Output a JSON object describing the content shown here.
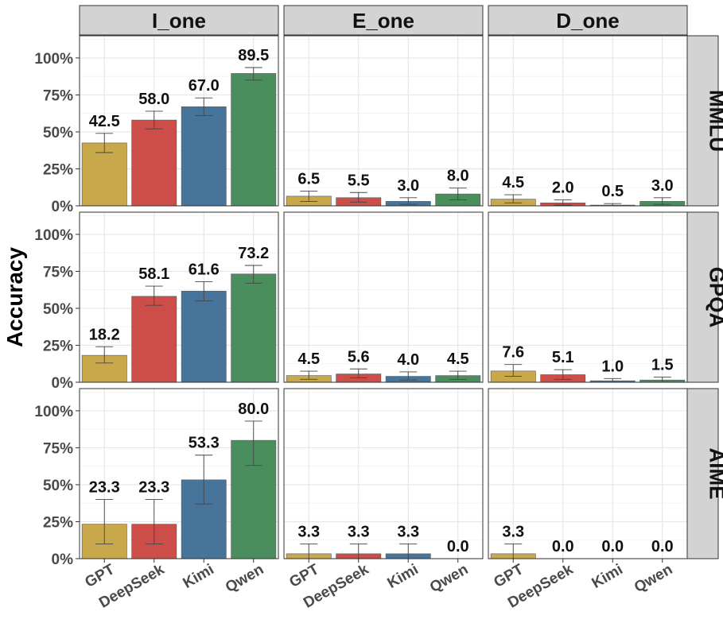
{
  "chart_data": {
    "type": "bar",
    "layout": "facet-grid",
    "ylabel": "Accuracy",
    "xlabel": "",
    "ylim": [
      0,
      100
    ],
    "y_ticks": [
      "0%",
      "25%",
      "50%",
      "75%",
      "100%"
    ],
    "y_tick_values": [
      0,
      25,
      50,
      75,
      100
    ],
    "grid": true,
    "legend": "none",
    "columns": [
      "I_one",
      "E_one",
      "D_one"
    ],
    "rows": [
      "MMLU",
      "GPQA",
      "AIME"
    ],
    "categories": [
      "GPT",
      "DeepSeek",
      "Kimi",
      "Qwen"
    ],
    "colors": {
      "GPT": "#C9A84C",
      "DeepSeek": "#CD4D48",
      "Kimi": "#46749A",
      "Qwen": "#4B8E5E",
      "strip": "#D3D3D3",
      "grid": "#E6E6E6"
    },
    "panels": [
      {
        "row": "MMLU",
        "col": "I_one",
        "values": [
          42.5,
          58.0,
          67.0,
          89.5
        ],
        "labels": [
          "42.5",
          "58.0",
          "67.0",
          "89.5"
        ],
        "err": [
          [
            36,
            49
          ],
          [
            52,
            64
          ],
          [
            61,
            73
          ],
          [
            85,
            93.5
          ]
        ]
      },
      {
        "row": "MMLU",
        "col": "E_one",
        "values": [
          6.5,
          5.5,
          3.0,
          8.0
        ],
        "labels": [
          "6.5",
          "5.5",
          "3.0",
          "8.0"
        ],
        "err": [
          [
            3,
            10
          ],
          [
            2.5,
            9
          ],
          [
            1,
            5.5
          ],
          [
            4,
            12
          ]
        ]
      },
      {
        "row": "MMLU",
        "col": "D_one",
        "values": [
          4.5,
          2.0,
          0.5,
          3.0
        ],
        "labels": [
          "4.5",
          "2.0",
          "0.5",
          "3.0"
        ],
        "err": [
          [
            2,
            7.5
          ],
          [
            0.5,
            4
          ],
          [
            0,
            1.5
          ],
          [
            1,
            5.5
          ]
        ]
      },
      {
        "row": "GPQA",
        "col": "I_one",
        "values": [
          18.2,
          58.1,
          61.6,
          73.2
        ],
        "labels": [
          "18.2",
          "58.1",
          "61.6",
          "73.2"
        ],
        "err": [
          [
            13,
            24
          ],
          [
            52,
            65
          ],
          [
            55,
            68
          ],
          [
            67,
            79
          ]
        ]
      },
      {
        "row": "GPQA",
        "col": "E_one",
        "values": [
          4.5,
          5.6,
          4.0,
          4.5
        ],
        "labels": [
          "4.5",
          "5.6",
          "4.0",
          "4.5"
        ],
        "err": [
          [
            2,
            7.5
          ],
          [
            3,
            9
          ],
          [
            1.5,
            7
          ],
          [
            2,
            7.5
          ]
        ]
      },
      {
        "row": "GPQA",
        "col": "D_one",
        "values": [
          7.6,
          5.1,
          1.0,
          1.5
        ],
        "labels": [
          "7.6",
          "5.1",
          "1.0",
          "1.5"
        ],
        "err": [
          [
            4,
            12
          ],
          [
            2,
            8.5
          ],
          [
            0,
            2.5
          ],
          [
            0,
            3.5
          ]
        ]
      },
      {
        "row": "AIME",
        "col": "I_one",
        "values": [
          23.3,
          23.3,
          53.3,
          80.0
        ],
        "labels": [
          "23.3",
          "23.3",
          "53.3",
          "80.0"
        ],
        "err": [
          [
            10,
            40
          ],
          [
            10,
            40
          ],
          [
            37,
            70
          ],
          [
            63,
            93
          ]
        ]
      },
      {
        "row": "AIME",
        "col": "E_one",
        "values": [
          3.3,
          3.3,
          3.3,
          0.0
        ],
        "labels": [
          "3.3",
          "3.3",
          "3.3",
          "0.0"
        ],
        "err": [
          [
            0,
            10
          ],
          [
            0,
            10
          ],
          [
            0,
            10
          ],
          [
            0,
            0
          ]
        ]
      },
      {
        "row": "AIME",
        "col": "D_one",
        "values": [
          3.3,
          0.0,
          0.0,
          0.0
        ],
        "labels": [
          "3.3",
          "0.0",
          "0.0",
          "0.0"
        ],
        "err": [
          [
            0,
            10
          ],
          [
            0,
            0
          ],
          [
            0,
            0
          ],
          [
            0,
            0
          ]
        ]
      }
    ]
  }
}
